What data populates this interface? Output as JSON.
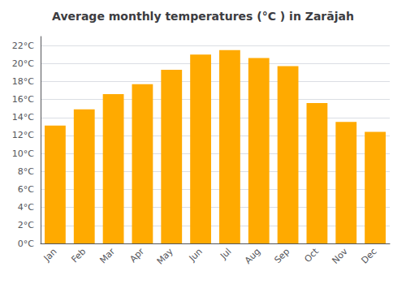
{
  "chart_data": {
    "type": "bar",
    "title": "Average monthly temperatures (°C ) in Zarājah",
    "categories": [
      "Jan",
      "Feb",
      "Mar",
      "Apr",
      "May",
      "Jun",
      "Jul",
      "Aug",
      "Sep",
      "Oct",
      "Nov",
      "Dec"
    ],
    "values": [
      13.1,
      14.9,
      16.6,
      17.7,
      19.3,
      21.0,
      21.5,
      20.6,
      19.7,
      15.6,
      13.5,
      12.4
    ],
    "color": "#FFAA00",
    "ylim": [
      0,
      23
    ],
    "yticks": [
      {
        "value": 0,
        "label": "0°C"
      },
      {
        "value": 2,
        "label": "2°C"
      },
      {
        "value": 4,
        "label": "4°C"
      },
      {
        "value": 6,
        "label": "6°C"
      },
      {
        "value": 8,
        "label": "8°C"
      },
      {
        "value": 10,
        "label": "10°C"
      },
      {
        "value": 12,
        "label": "12°C"
      },
      {
        "value": 14,
        "label": "14°C"
      },
      {
        "value": 16,
        "label": "16°C"
      },
      {
        "value": 18,
        "label": "18°C"
      },
      {
        "value": 20,
        "label": "20°C"
      },
      {
        "value": 22,
        "label": "22°C"
      }
    ],
    "grid": true
  }
}
